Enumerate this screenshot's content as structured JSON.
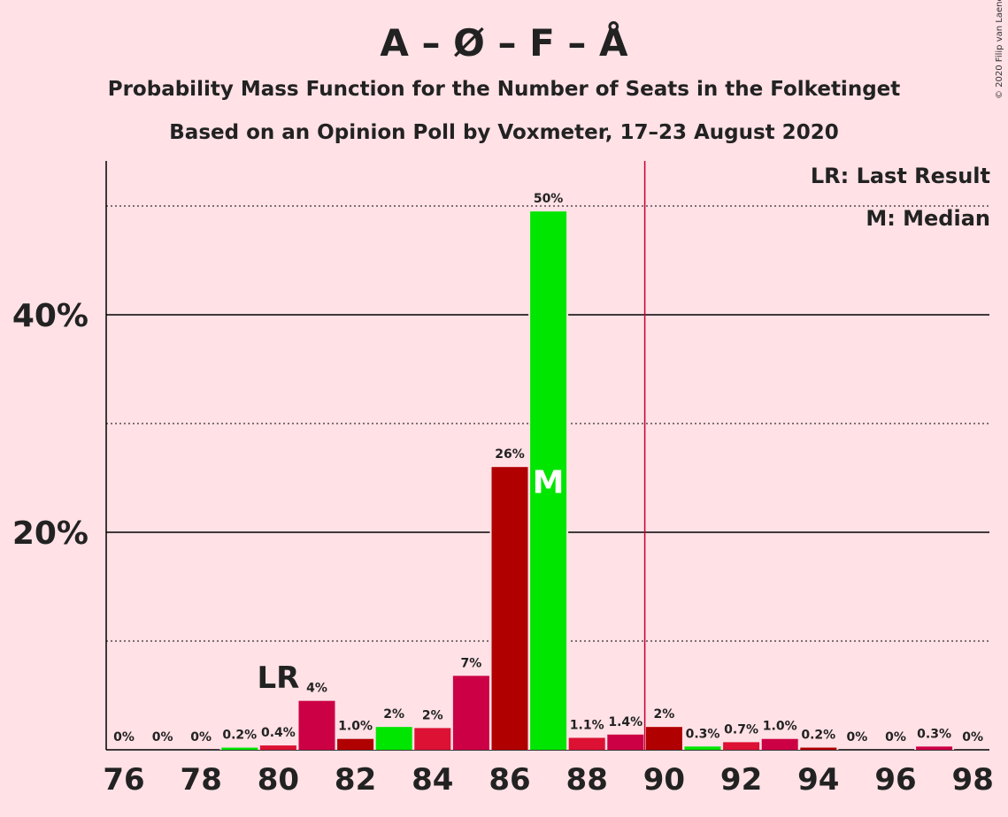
{
  "title": "A – Ø – F – Å",
  "subtitle_1": "Probability Mass Function for the Number of Seats in the Folketinget",
  "subtitle_2": "Based on an Opinion Poll by Voxmeter, 17–23 August 2020",
  "copyright": "© 2020 Filip van Laenen",
  "legend": {
    "lr": "LR: Last Result",
    "m": "M: Median"
  },
  "colors": {
    "background": "#FFE1E6",
    "crimson": "#CC0044",
    "red": "#DD1133",
    "darkred": "#B00000",
    "green": "#00E600",
    "majority_line": "#C8002E"
  },
  "chart_data": {
    "type": "bar",
    "x": [
      76,
      77,
      78,
      79,
      80,
      81,
      82,
      83,
      84,
      85,
      86,
      87,
      88,
      89,
      90,
      91,
      92,
      93,
      94,
      95,
      96,
      97,
      98
    ],
    "values": [
      0,
      0,
      0,
      0.2,
      0.4,
      4.5,
      1.0,
      2.1,
      2.0,
      6.8,
      26.0,
      49.5,
      1.1,
      1.4,
      2.1,
      0.3,
      0.7,
      1.0,
      0.2,
      0,
      0,
      0.3,
      0
    ],
    "labels": [
      "0%",
      "0%",
      "0%",
      "0.2%",
      "0.4%",
      "4%",
      "1.0%",
      "2%",
      "2%",
      "7%",
      "26%",
      "50%",
      "1.1%",
      "1.4%",
      "2%",
      "0.3%",
      "0.7%",
      "1.0%",
      "0.2%",
      "0%",
      "0%",
      "0.3%",
      "0%"
    ],
    "bar_colors": [
      "crimson",
      "crimson",
      "crimson",
      "green",
      "red",
      "crimson",
      "darkred",
      "green",
      "red",
      "crimson",
      "darkred",
      "green",
      "red",
      "crimson",
      "darkred",
      "green",
      "red",
      "crimson",
      "darkred",
      "green",
      "red",
      "crimson",
      "darkred"
    ],
    "x_ticks": [
      "76",
      "78",
      "80",
      "82",
      "84",
      "86",
      "88",
      "90",
      "92",
      "94",
      "96",
      "98"
    ],
    "y_ticks": [
      "20%",
      "40%"
    ],
    "ylim": [
      0,
      54
    ],
    "last_result_seat": 80,
    "last_result_label": "LR",
    "median_seat": 87,
    "median_label": "M",
    "majority_after_seat": 89
  }
}
